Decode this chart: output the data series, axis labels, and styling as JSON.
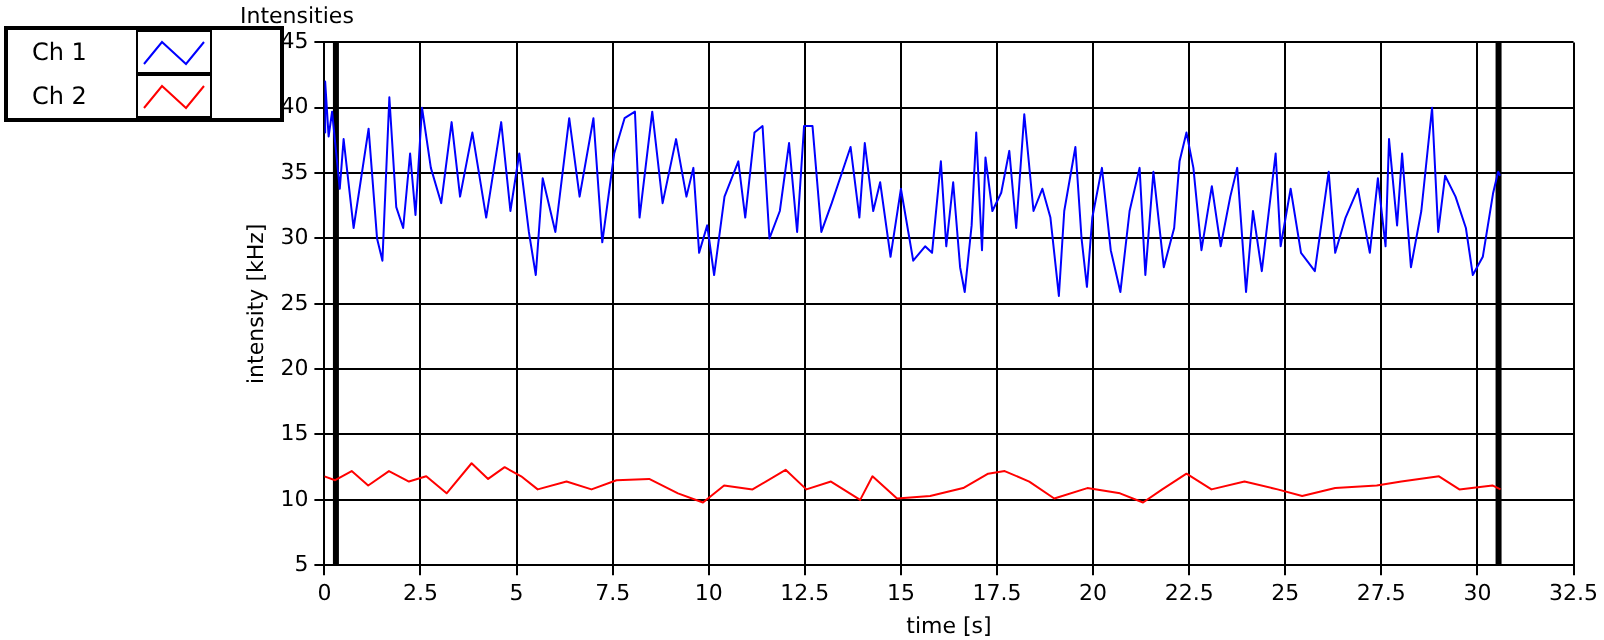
{
  "chart_data": {
    "type": "line",
    "title": "Intensities",
    "xlabel": "time [s]",
    "ylabel": "intensity [kHz]",
    "xlim": [
      0,
      32.5
    ],
    "xticks": [
      0,
      2.5,
      5,
      7.5,
      10,
      12.5,
      15,
      17.5,
      20,
      22.5,
      25,
      27.5,
      30,
      32.5
    ],
    "ylim": [
      5,
      45
    ],
    "yticks": [
      5,
      10,
      15,
      20,
      25,
      30,
      35,
      40,
      45
    ],
    "grid": true,
    "legend": "top left",
    "marker": "none",
    "line_style": "solid",
    "ref_lines": [
      {
        "axis": "x",
        "value": 0.3,
        "color": "#000000"
      },
      {
        "axis": "x",
        "value": 30.55,
        "color": "#000000"
      }
    ],
    "series": [
      {
        "name": "Ch 1",
        "color": "#0000ff",
        "x": [
          0,
          0.02,
          0.11,
          0.2,
          0.4,
          0.5,
          0.76,
          1.15,
          1.37,
          1.51,
          1.69,
          1.87,
          2.05,
          2.23,
          2.37,
          2.54,
          2.77,
          3.04,
          3.31,
          3.53,
          3.85,
          4.21,
          4.6,
          4.84,
          5.07,
          5.32,
          5.5,
          5.68,
          6.01,
          6.37,
          6.64,
          7.0,
          7.23,
          7.54,
          7.81,
          8.08,
          8.2,
          8.53,
          8.8,
          9.15,
          9.42,
          9.6,
          9.75,
          9.96,
          10.14,
          10.41,
          10.77,
          10.95,
          11.19,
          11.4,
          11.58,
          11.85,
          12.09,
          12.3,
          12.48,
          12.7,
          12.93,
          13.2,
          13.69,
          13.92,
          14.06,
          14.28,
          14.46,
          14.73,
          15.0,
          15.32,
          15.63,
          15.81,
          16.04,
          16.18,
          16.36,
          16.54,
          16.66,
          16.84,
          16.96,
          17.11,
          17.2,
          17.38,
          17.61,
          17.82,
          18.0,
          18.21,
          18.45,
          18.68,
          18.89,
          19.11,
          19.25,
          19.54,
          19.7,
          19.84,
          19.98,
          20.23,
          20.46,
          20.71,
          20.95,
          21.21,
          21.36,
          21.57,
          21.84,
          22.11,
          22.25,
          22.43,
          22.61,
          22.82,
          23.09,
          23.32,
          23.57,
          23.75,
          23.98,
          24.16,
          24.39,
          24.75,
          24.88,
          25.14,
          25.41,
          25.77,
          26.13,
          26.3,
          26.57,
          26.89,
          27.2,
          27.41,
          27.61,
          27.7,
          27.91,
          28.04,
          28.27,
          28.54,
          28.82,
          28.98,
          29.16,
          29.43,
          29.7,
          29.88,
          30.14,
          30.41,
          30.54,
          30.59
        ],
        "values": [
          38.1,
          42,
          37.8,
          39.7,
          33.8,
          37.6,
          30.8,
          38.4,
          30,
          28.3,
          40.8,
          32.4,
          30.8,
          36.5,
          31.8,
          40,
          35.4,
          32.7,
          38.9,
          33.2,
          38.1,
          31.6,
          38.9,
          32.1,
          36.5,
          30.5,
          27.2,
          34.6,
          30.5,
          39.2,
          33.2,
          39.2,
          29.7,
          36.5,
          39.2,
          39.7,
          31.6,
          39.7,
          32.7,
          37.6,
          33.2,
          35.4,
          28.9,
          31,
          27.2,
          33.2,
          35.9,
          31.6,
          38.1,
          38.6,
          30,
          32.1,
          37.3,
          30.5,
          38.6,
          38.6,
          30.5,
          32.7,
          37,
          31.6,
          37.3,
          32.1,
          34.3,
          28.6,
          33.8,
          28.3,
          29.4,
          28.9,
          35.9,
          29.4,
          34.3,
          27.8,
          25.9,
          31,
          38.1,
          29.1,
          36.2,
          32.1,
          33.5,
          36.7,
          30.8,
          39.5,
          32.1,
          33.8,
          31.6,
          25.6,
          32.1,
          37,
          30,
          26.3,
          31.6,
          35.4,
          29.1,
          25.9,
          32.1,
          35.4,
          27.2,
          35.1,
          27.8,
          30.8,
          35.9,
          38.1,
          35.4,
          29.1,
          34,
          29.4,
          33.2,
          35.4,
          25.9,
          32.1,
          27.5,
          36.5,
          29.4,
          33.8,
          28.9,
          27.5,
          35.1,
          28.9,
          31.6,
          33.8,
          28.9,
          34.6,
          29.4,
          37.6,
          31,
          36.5,
          27.8,
          32.1,
          40,
          30.5,
          34.8,
          33.2,
          30.8,
          27.2,
          28.6,
          33.5,
          35.1,
          34.8
        ]
      },
      {
        "name": "Ch 2",
        "color": "#ff0000",
        "x": [
          0,
          0.28,
          0.71,
          1.14,
          1.68,
          2.2,
          2.65,
          3.18,
          3.83,
          4.26,
          4.69,
          5.12,
          5.55,
          6.3,
          6.95,
          7.6,
          8.45,
          9.2,
          9.85,
          10.4,
          11.14,
          12.0,
          12.54,
          13.18,
          13.94,
          14.26,
          14.9,
          15.76,
          16.62,
          17.27,
          17.7,
          18.34,
          18.99,
          19.85,
          20.7,
          21.3,
          21.8,
          22.43,
          23.08,
          23.94,
          24.8,
          25.44,
          26.3,
          27.38,
          28.02,
          29.0,
          29.53,
          30.39,
          30.6
        ],
        "values": [
          11.8,
          11.5,
          12.2,
          11.1,
          12.2,
          11.4,
          11.8,
          10.5,
          12.8,
          11.6,
          12.5,
          11.8,
          10.8,
          11.4,
          10.8,
          11.5,
          11.6,
          10.5,
          9.8,
          11.1,
          10.8,
          12.3,
          10.8,
          11.4,
          10,
          11.8,
          10.1,
          10.3,
          10.9,
          12,
          12.2,
          11.4,
          10.1,
          10.9,
          10.5,
          9.8,
          10.8,
          12,
          10.8,
          11.4,
          10.8,
          10.3,
          10.9,
          11.1,
          11.4,
          11.8,
          10.8,
          11.1,
          10.8
        ]
      }
    ]
  }
}
